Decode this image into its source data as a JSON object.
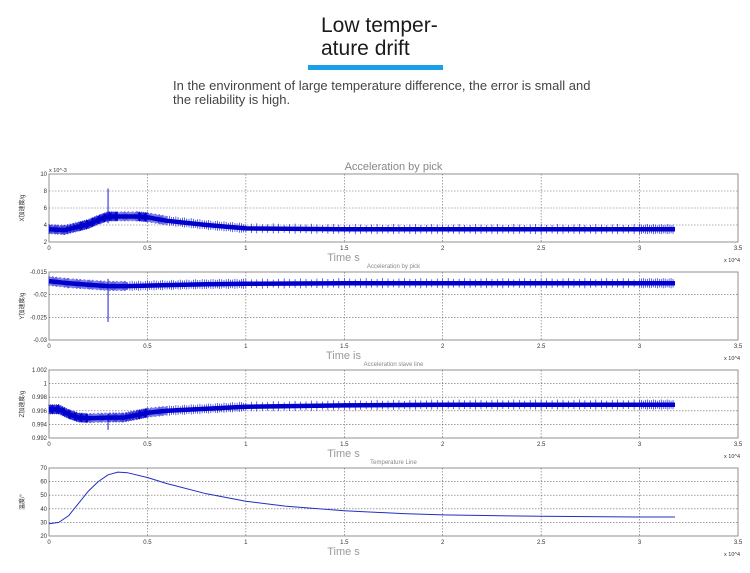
{
  "header": {
    "title": "Low temper-\nature drift",
    "description": "In the environment of large temperature difference, the error is small and the reliability is high.",
    "accent_color": "#1aa0e8"
  },
  "chart_data": [
    {
      "type": "line",
      "title": "Acceleration by pick",
      "ylabel": "X加速度/g",
      "xlabel": "Time s",
      "x_multiplier": "x 10^4",
      "y_multiplier": "x 10^-3",
      "xlim": [
        0,
        3.5
      ],
      "ylim": [
        2,
        10
      ],
      "xticks": [
        "0",
        "0.5",
        "1",
        "1.5",
        "2",
        "2.5",
        "3",
        "3.5"
      ],
      "yticks": [
        "2",
        "4",
        "6",
        "8",
        "10"
      ],
      "grid": true,
      "series": [
        {
          "color": "#0000cc",
          "x": [
            0,
            0.08,
            0.15,
            0.2,
            0.25,
            0.3,
            0.35,
            0.45,
            0.5,
            0.6,
            0.8,
            1.0,
            1.5,
            2.0,
            2.5,
            3.0,
            3.18
          ],
          "values": [
            3.5,
            3.4,
            3.8,
            4.1,
            4.6,
            5.0,
            5.0,
            5.0,
            4.9,
            4.5,
            4.0,
            3.6,
            3.5,
            3.5,
            3.5,
            3.5,
            3.5
          ]
        }
      ]
    },
    {
      "type": "line",
      "title": "Acceleration by pick",
      "ylabel": "Y加速度/g",
      "xlabel": "Time is",
      "x_multiplier": "x 10^4",
      "xlim": [
        0,
        3.5
      ],
      "ylim": [
        -0.03,
        -0.015
      ],
      "xticks": [
        "0",
        "0.5",
        "1",
        "1.5",
        "2",
        "2.5",
        "3",
        "3.5"
      ],
      "yticks": [
        "-0.03",
        "-0.025",
        "-0.02",
        "-0.015"
      ],
      "grid": true,
      "series": [
        {
          "color": "#0000cc",
          "x": [
            0,
            0.1,
            0.2,
            0.3,
            0.4,
            0.6,
            0.8,
            1.0,
            1.5,
            2.0,
            2.5,
            3.0,
            3.18
          ],
          "values": [
            -0.017,
            -0.0175,
            -0.0178,
            -0.0181,
            -0.0181,
            -0.0179,
            -0.0177,
            -0.0176,
            -0.0175,
            -0.0175,
            -0.0175,
            -0.0175,
            -0.0175
          ]
        }
      ]
    },
    {
      "type": "line",
      "title": "Acceleration slave line",
      "ylabel": "Z加速度/g",
      "xlabel": "Time s",
      "x_multiplier": "x 10^4",
      "xlim": [
        0,
        3.5
      ],
      "ylim": [
        0.992,
        1.002
      ],
      "xticks": [
        "0",
        "0.5",
        "1",
        "1.5",
        "2",
        "2.5",
        "3",
        "3.5"
      ],
      "yticks": [
        "0.992",
        "0.994",
        "0.996",
        "0.998",
        "1",
        "1.002"
      ],
      "grid": true,
      "series": [
        {
          "color": "#0000cc",
          "x": [
            0,
            0.05,
            0.1,
            0.15,
            0.2,
            0.3,
            0.38,
            0.45,
            0.5,
            0.6,
            0.8,
            1.0,
            1.5,
            2.0,
            2.5,
            3.0,
            3.18
          ],
          "values": [
            0.9962,
            0.9962,
            0.9955,
            0.995,
            0.9949,
            0.995,
            0.995,
            0.9954,
            0.9957,
            0.996,
            0.9963,
            0.9966,
            0.9968,
            0.9969,
            0.9969,
            0.9969,
            0.9969
          ]
        }
      ]
    },
    {
      "type": "line",
      "title": "Temperature Line",
      "ylabel": "温度/°",
      "xlabel": "Time s",
      "x_multiplier": "x 10^4",
      "xlim": [
        0,
        3.5
      ],
      "ylim": [
        20,
        70
      ],
      "xticks": [
        "0",
        "0.5",
        "1",
        "1.5",
        "2",
        "2.5",
        "3",
        "3.5"
      ],
      "yticks": [
        "20",
        "30",
        "40",
        "50",
        "60",
        "70"
      ],
      "grid": true,
      "series": [
        {
          "color": "#2030c0",
          "x": [
            0,
            0.05,
            0.1,
            0.15,
            0.2,
            0.25,
            0.3,
            0.35,
            0.4,
            0.5,
            0.6,
            0.8,
            1.0,
            1.2,
            1.5,
            1.8,
            2.0,
            2.5,
            3.0,
            3.18
          ],
          "values": [
            29,
            30,
            35,
            44,
            53,
            60,
            65,
            67,
            66.5,
            63,
            58.5,
            51,
            45.5,
            42,
            38.5,
            36.5,
            35.5,
            34.5,
            34,
            34
          ]
        }
      ]
    }
  ]
}
